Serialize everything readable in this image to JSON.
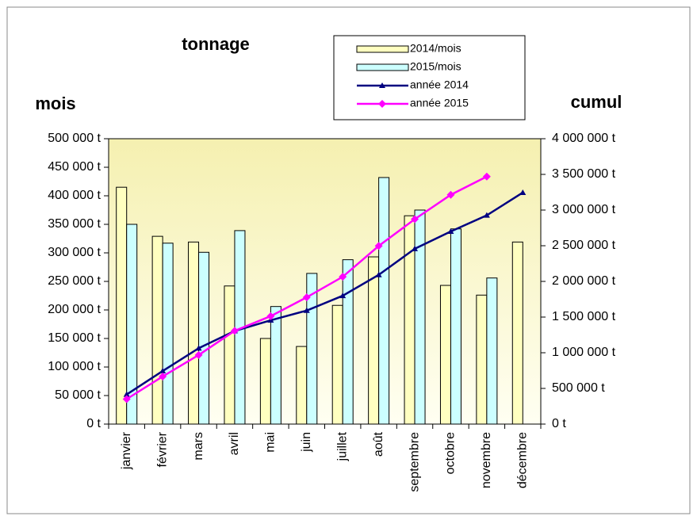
{
  "chart_data": {
    "type": "bar",
    "title": "tonnage",
    "ylabel": "mois",
    "y2label": "cumul",
    "categories": [
      "janvier",
      "février",
      "mars",
      "avril",
      "mai",
      "juin",
      "juillet",
      "août",
      "septembre",
      "octobre",
      "novembre",
      "décembre"
    ],
    "series": [
      {
        "name": "2014/mois",
        "type": "bar",
        "color": "#ffffc0",
        "values": [
          415000,
          329000,
          319000,
          242000,
          150000,
          136000,
          208000,
          293000,
          365000,
          243000,
          226000,
          319000
        ]
      },
      {
        "name": "2015/mois",
        "type": "bar",
        "color": "#ccffff",
        "values": [
          350000,
          317000,
          301000,
          339000,
          206000,
          264000,
          288000,
          432000,
          375000,
          342000,
          256000,
          null
        ]
      },
      {
        "name": "année 2014",
        "type": "line",
        "axis": "y2",
        "color": "#000080",
        "marker": "triangle",
        "values": [
          415000,
          744000,
          1063000,
          1305000,
          1455000,
          1591000,
          1799000,
          2092000,
          2457000,
          2700000,
          2926000,
          3245000
        ]
      },
      {
        "name": "année 2015",
        "type": "line",
        "axis": "y2",
        "color": "#ff00ff",
        "marker": "diamond",
        "values": [
          350000,
          667000,
          968000,
          1307000,
          1513000,
          1777000,
          2065000,
          2497000,
          2872000,
          3214000,
          3470000,
          null
        ]
      }
    ],
    "ylim": [
      0,
      500000
    ],
    "yticks": [
      {
        "value": 0,
        "label": "0 t"
      },
      {
        "value": 50000,
        "label": "50 000 t"
      },
      {
        "value": 100000,
        "label": "100 000 t"
      },
      {
        "value": 150000,
        "label": "150 000 t"
      },
      {
        "value": 200000,
        "label": "200 000 t"
      },
      {
        "value": 250000,
        "label": "250 000 t"
      },
      {
        "value": 300000,
        "label": "300 000 t"
      },
      {
        "value": 350000,
        "label": "350 000 t"
      },
      {
        "value": 400000,
        "label": "400 000 t"
      },
      {
        "value": 450000,
        "label": "450 000 t"
      },
      {
        "value": 500000,
        "label": "500 000 t"
      }
    ],
    "y2lim": [
      0,
      4000000
    ],
    "y2ticks": [
      {
        "value": 0,
        "label": "0 t"
      },
      {
        "value": 500000,
        "label": "500 000 t"
      },
      {
        "value": 1000000,
        "label": "1 000 000 t"
      },
      {
        "value": 1500000,
        "label": "1 500 000 t"
      },
      {
        "value": 2000000,
        "label": "2 000 000 t"
      },
      {
        "value": 2500000,
        "label": "2 500 000 t"
      },
      {
        "value": 3000000,
        "label": "3 000 000 t"
      },
      {
        "value": 3500000,
        "label": "3 500 000 t"
      },
      {
        "value": 4000000,
        "label": "4 000 000 t"
      }
    ],
    "grid": false,
    "legend": "top-right"
  }
}
